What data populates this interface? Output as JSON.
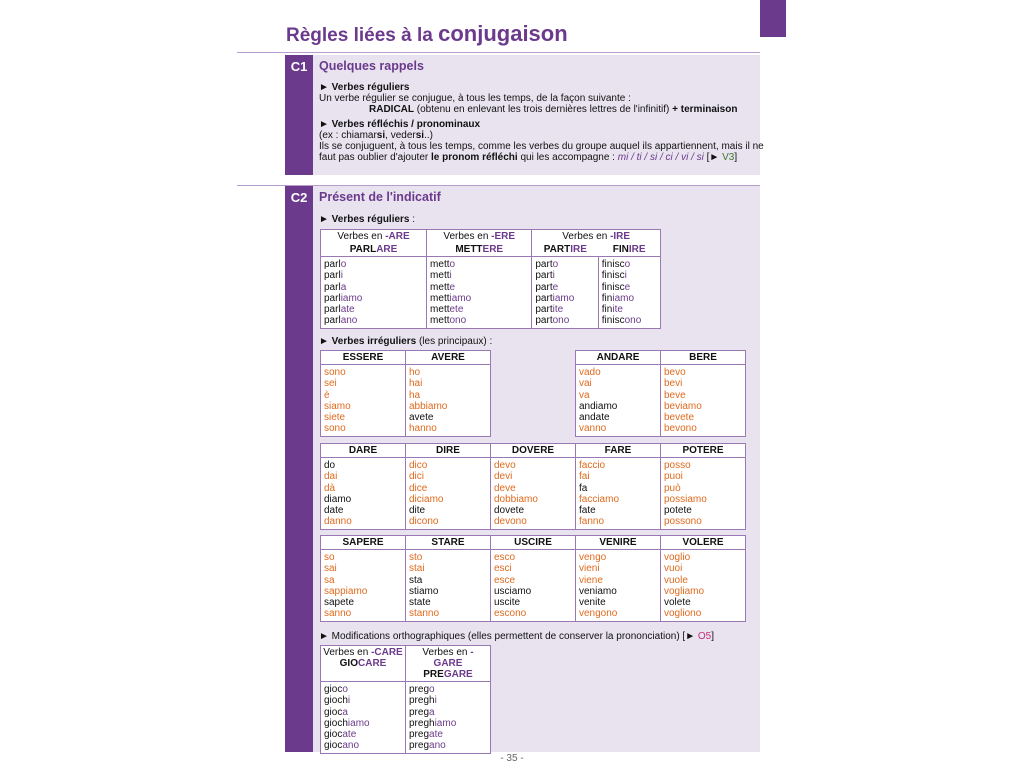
{
  "page": {
    "title_small": "Règles liées à la",
    "title_big": "conjugaison",
    "page_number": "- 35 -"
  },
  "c1": {
    "code": "C1",
    "title": "Quelques rappels",
    "h1": "► Verbes réguliers",
    "l1": "Un verbe régulier se conjugue, à tous les temps, de la façon suivante :",
    "l2a": "RADICAL",
    "l2b": " (obtenu en enlevant les trois dernières lettres de l'infinitif) ",
    "l2c": "+ terminaison",
    "h2": "► Verbes réfléchis / pronominaux",
    "l3a": "(ex : chiamar",
    "l3b": "si",
    "l3c": ", veder",
    "l3d": "si",
    "l3e": "..)",
    "l4": "Ils se conjuguent, à tous les temps, comme les verbes du groupe auquel ils appartiennent, mais il ne",
    "l5a": "faut pas oublier d'ajouter ",
    "l5b": "le pronom réfléchi",
    "l5c": " qui les accompagne : ",
    "l5d": "mi / ti / si / ci / vi / si",
    "l5e": "  [► ",
    "l5f": "V3",
    "l5g": "]"
  },
  "c2": {
    "code": "C2",
    "title": "Présent de l'indicatif",
    "regular_label": "► Verbes réguliers",
    "regular_label_suffix": " :",
    "irregular_label": "► Verbes irréguliers",
    "irregular_label_suffix": " (les principaux) :",
    "modif_label": "► Modifications orthographiques (elles permettent de conserver la prononciation) [► ",
    "modif_ref": "O5",
    "modif_end": "]",
    "regular_groups": [
      {
        "pre": "Verbes en ",
        "end": "-ARE"
      },
      {
        "pre": "Verbes en ",
        "end": "-ERE"
      },
      {
        "pre": "Verbes en ",
        "end": "-IRE"
      }
    ],
    "regular_verbs": [
      {
        "stem": "PARL",
        "end": "ARE",
        "forms": [
          [
            "parl",
            "o"
          ],
          [
            "parl",
            "i"
          ],
          [
            "parl",
            "a"
          ],
          [
            "parl",
            "iamo"
          ],
          [
            "parl",
            "ate"
          ],
          [
            "parl",
            "ano"
          ]
        ]
      },
      {
        "stem": "METT",
        "end": "ERE",
        "forms": [
          [
            "mett",
            "o"
          ],
          [
            "mett",
            "i"
          ],
          [
            "mett",
            "e"
          ],
          [
            "mett",
            "iamo"
          ],
          [
            "mett",
            "ete"
          ],
          [
            "mett",
            "ono"
          ]
        ]
      },
      {
        "stem": "PART",
        "end": "IRE",
        "forms": [
          [
            "part",
            "o"
          ],
          [
            "part",
            "i"
          ],
          [
            "part",
            "e"
          ],
          [
            "part",
            "iamo"
          ],
          [
            "part",
            "ite"
          ],
          [
            "part",
            "ono"
          ]
        ]
      },
      {
        "stem": "FIN",
        "end": "IRE",
        "forms": [
          [
            "finisc",
            "o"
          ],
          [
            "finisc",
            "i"
          ],
          [
            "finisc",
            "e"
          ],
          [
            "fin",
            "iamo"
          ],
          [
            "fin",
            "ite"
          ],
          [
            "finisc",
            "ono"
          ]
        ]
      }
    ],
    "irregular_tables": [
      [
        {
          "verb": "ESSERE",
          "forms": [
            {
              "f": "sono",
              "irr": true
            },
            {
              "f": "sei",
              "irr": true
            },
            {
              "f": "è",
              "irr": true
            },
            {
              "f": "siamo",
              "irr": true
            },
            {
              "f": "siete",
              "irr": true
            },
            {
              "f": "sono",
              "irr": true
            }
          ]
        },
        {
          "verb": "AVERE",
          "forms": [
            {
              "f": "ho",
              "irr": true
            },
            {
              "f": "hai",
              "irr": true
            },
            {
              "f": "ha",
              "irr": true
            },
            {
              "f": "abbiamo",
              "irr": true
            },
            {
              "f": "avete",
              "irr": false
            },
            {
              "f": "hanno",
              "irr": true
            }
          ]
        }
      ],
      [
        {
          "verb": "ANDARE",
          "forms": [
            {
              "f": "vado",
              "irr": true
            },
            {
              "f": "vai",
              "irr": true
            },
            {
              "f": "va",
              "irr": true
            },
            {
              "f": "andiamo",
              "irr": false
            },
            {
              "f": "andate",
              "irr": false
            },
            {
              "f": "vanno",
              "irr": true
            }
          ]
        },
        {
          "verb": "BERE",
          "forms": [
            {
              "f": "bevo",
              "irr": true
            },
            {
              "f": "bevi",
              "irr": true
            },
            {
              "f": "beve",
              "irr": true
            },
            {
              "f": "beviamo",
              "irr": true
            },
            {
              "f": "bevete",
              "irr": true
            },
            {
              "f": "bevono",
              "irr": true
            }
          ]
        }
      ],
      [
        {
          "verb": "DARE",
          "forms": [
            {
              "f": "do",
              "irr": false
            },
            {
              "f": "dai",
              "irr": true
            },
            {
              "f": "dà",
              "irr": true
            },
            {
              "f": "diamo",
              "irr": false
            },
            {
              "f": "date",
              "irr": false
            },
            {
              "f": "danno",
              "irr": true
            }
          ]
        },
        {
          "verb": "DIRE",
          "forms": [
            {
              "f": "dico",
              "irr": true
            },
            {
              "f": "dici",
              "irr": true
            },
            {
              "f": "dice",
              "irr": true
            },
            {
              "f": "diciamo",
              "irr": true
            },
            {
              "f": "dite",
              "irr": false
            },
            {
              "f": "dicono",
              "irr": true
            }
          ]
        },
        {
          "verb": "DOVERE",
          "forms": [
            {
              "f": "devo",
              "irr": true
            },
            {
              "f": "devi",
              "irr": true
            },
            {
              "f": "deve",
              "irr": true
            },
            {
              "f": "dobbiamo",
              "irr": true
            },
            {
              "f": "dovete",
              "irr": false
            },
            {
              "f": "devono",
              "irr": true
            }
          ]
        },
        {
          "verb": "FARE",
          "forms": [
            {
              "f": "faccio",
              "irr": true
            },
            {
              "f": "fai",
              "irr": true
            },
            {
              "f": "fa",
              "irr": false
            },
            {
              "f": "facciamo",
              "irr": true
            },
            {
              "f": "fate",
              "irr": false
            },
            {
              "f": "fanno",
              "irr": true
            }
          ]
        },
        {
          "verb": "POTERE",
          "forms": [
            {
              "f": "posso",
              "irr": true
            },
            {
              "f": "puoi",
              "irr": true
            },
            {
              "f": "può",
              "irr": true
            },
            {
              "f": "possiamo",
              "irr": true
            },
            {
              "f": "potete",
              "irr": false
            },
            {
              "f": "possono",
              "irr": true
            }
          ]
        }
      ],
      [
        {
          "verb": "SAPERE",
          "forms": [
            {
              "f": "so",
              "irr": true
            },
            {
              "f": "sai",
              "irr": true
            },
            {
              "f": "sa",
              "irr": true
            },
            {
              "f": "sappiamo",
              "irr": true
            },
            {
              "f": "sapete",
              "irr": false
            },
            {
              "f": "sanno",
              "irr": true
            }
          ]
        },
        {
          "verb": "STARE",
          "forms": [
            {
              "f": "sto",
              "irr": true
            },
            {
              "f": "stai",
              "irr": true
            },
            {
              "f": "sta",
              "irr": false
            },
            {
              "f": "stiamo",
              "irr": false
            },
            {
              "f": "state",
              "irr": false
            },
            {
              "f": "stanno",
              "irr": true
            }
          ]
        },
        {
          "verb": "USCIRE",
          "forms": [
            {
              "f": "esco",
              "irr": true
            },
            {
              "f": "esci",
              "irr": true
            },
            {
              "f": "esce",
              "irr": true
            },
            {
              "f": "usciamo",
              "irr": false
            },
            {
              "f": "uscite",
              "irr": false
            },
            {
              "f": "escono",
              "irr": true
            }
          ]
        },
        {
          "verb": "VENIRE",
          "forms": [
            {
              "f": "vengo",
              "irr": true
            },
            {
              "f": "vieni",
              "irr": true
            },
            {
              "f": "viene",
              "irr": true
            },
            {
              "f": "veniamo",
              "irr": false
            },
            {
              "f": "venite",
              "irr": false
            },
            {
              "f": "vengono",
              "irr": true
            }
          ]
        },
        {
          "verb": "VOLERE",
          "forms": [
            {
              "f": "voglio",
              "irr": true
            },
            {
              "f": "vuoi",
              "irr": true
            },
            {
              "f": "vuole",
              "irr": true
            },
            {
              "f": "vogliamo",
              "irr": true
            },
            {
              "f": "volete",
              "irr": false
            },
            {
              "f": "vogliono",
              "irr": true
            }
          ]
        }
      ]
    ],
    "modif_verbs": [
      {
        "pre": "Verbes en ",
        "group": "-CARE",
        "stem": "GIO",
        "end": "CARE",
        "forms": [
          [
            "gioc",
            "o"
          ],
          [
            "gioch",
            "i"
          ],
          [
            "gioc",
            "a"
          ],
          [
            "gioch",
            "iamo"
          ],
          [
            "gioc",
            "ate"
          ],
          [
            "gioc",
            "ano"
          ]
        ]
      },
      {
        "pre": "Verbes en ",
        "group": "-GARE",
        "stem": "PRE",
        "end": "GARE",
        "forms": [
          [
            "preg",
            "o"
          ],
          [
            "pregh",
            "i"
          ],
          [
            "preg",
            "a"
          ],
          [
            "pregh",
            "iamo"
          ],
          [
            "preg",
            "ate"
          ],
          [
            "preg",
            "ano"
          ]
        ]
      }
    ]
  },
  "colors": {
    "brand_purple": "#6b3a8c",
    "irregular_orange": "#e06a1e",
    "box_bg": "#e8e3ef"
  }
}
